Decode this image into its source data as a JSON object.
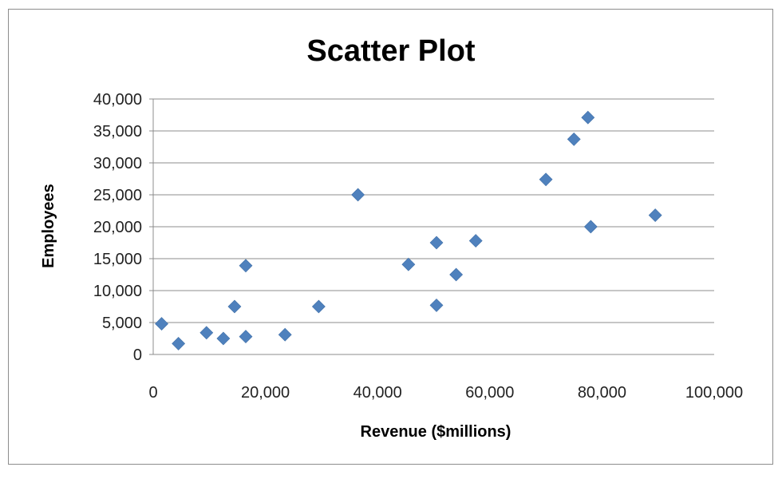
{
  "chart_data": {
    "type": "scatter",
    "title": "Scatter Plot",
    "xlabel": "Revenue ($millions)",
    "ylabel": "Employees",
    "xlim": [
      0,
      100000
    ],
    "ylim": [
      0,
      40000
    ],
    "x_ticks": [
      "0",
      "20,000",
      "40,000",
      "60,000",
      "80,000",
      "100,000"
    ],
    "y_ticks": [
      "0",
      "5,000",
      "10,000",
      "15,000",
      "20,000",
      "25,000",
      "30,000",
      "35,000",
      "40,000"
    ],
    "x_tick_values": [
      0,
      20000,
      40000,
      60000,
      80000,
      100000
    ],
    "y_tick_values": [
      0,
      5000,
      10000,
      15000,
      20000,
      25000,
      30000,
      35000,
      40000
    ],
    "grid": "horizontal",
    "legend": "none",
    "marker": "diamond",
    "marker_color": "#4f81bd",
    "gridline_color": "#8c8c8c",
    "points": [
      {
        "x": 1500,
        "y": 4800
      },
      {
        "x": 4500,
        "y": 1700
      },
      {
        "x": 9500,
        "y": 3400
      },
      {
        "x": 12500,
        "y": 2500
      },
      {
        "x": 14500,
        "y": 7500
      },
      {
        "x": 16500,
        "y": 2800
      },
      {
        "x": 16500,
        "y": 13900
      },
      {
        "x": 23500,
        "y": 3100
      },
      {
        "x": 29500,
        "y": 7500
      },
      {
        "x": 36500,
        "y": 25000
      },
      {
        "x": 45500,
        "y": 14100
      },
      {
        "x": 50500,
        "y": 7700
      },
      {
        "x": 50500,
        "y": 17500
      },
      {
        "x": 54000,
        "y": 12500
      },
      {
        "x": 57500,
        "y": 17800
      },
      {
        "x": 70000,
        "y": 27400
      },
      {
        "x": 75000,
        "y": 33700
      },
      {
        "x": 77500,
        "y": 37100
      },
      {
        "x": 78000,
        "y": 20000
      },
      {
        "x": 89500,
        "y": 21800
      }
    ]
  }
}
